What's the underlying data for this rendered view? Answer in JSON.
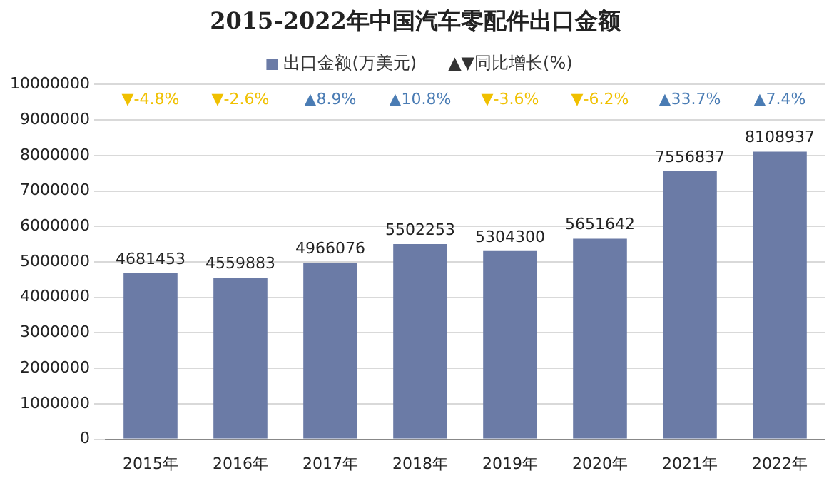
{
  "chart_data": {
    "type": "bar",
    "title": "2015-2022年中国汽车零配件出口金额",
    "categories": [
      "2015年",
      "2016年",
      "2017年",
      "2018年",
      "2019年",
      "2020年",
      "2021年",
      "2022年"
    ],
    "series": [
      {
        "name": "出口金额(万美元)",
        "color": "#6b7ba6",
        "values": [
          4681453,
          4559883,
          4966076,
          5502253,
          5304300,
          5651642,
          7556837,
          8108937
        ]
      }
    ],
    "ylim": [
      0,
      10000000
    ],
    "yticks": [
      0,
      1000000,
      2000000,
      3000000,
      4000000,
      5000000,
      6000000,
      7000000,
      8000000,
      9000000,
      10000000
    ],
    "grid": "y",
    "legend": "top",
    "data_labels": true,
    "annotations": [
      "▲▼同比增长(%)",
      "▼-4.8%",
      "▼-2.6%",
      "▲8.9%",
      "▲10.8%",
      "▼-3.6%",
      "▼-6.2%",
      "▲33.7%",
      "▲7.4%"
    ]
  }
}
